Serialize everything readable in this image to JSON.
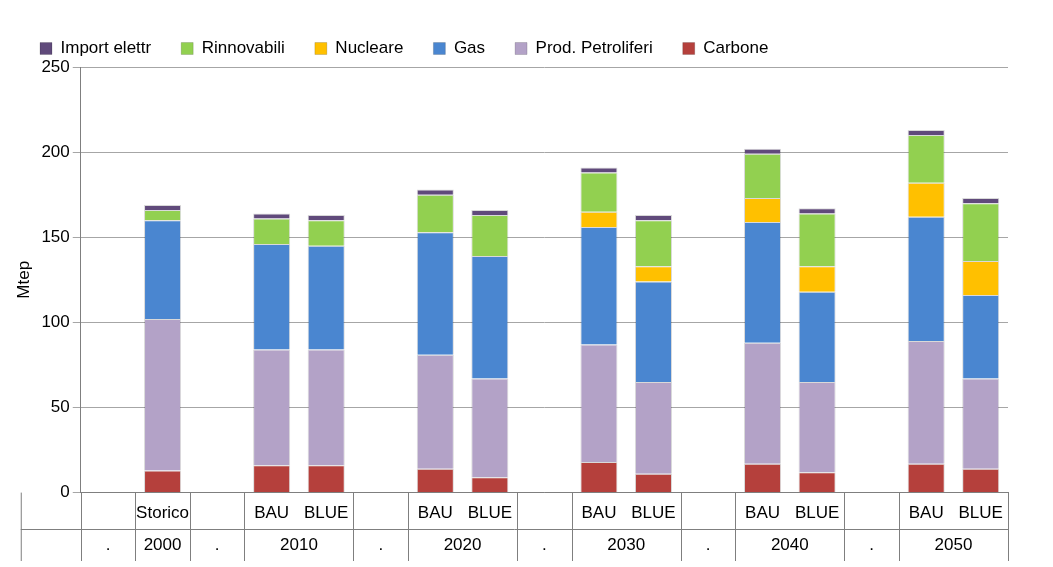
{
  "chart_data": {
    "type": "bar",
    "y_label": "Mtep",
    "groups": [
      {
        "label": ".",
        "categories": [
          null
        ]
      },
      {
        "label": "2000",
        "categories": [
          "Storico"
        ]
      },
      {
        "label": ".",
        "categories": [
          null
        ]
      },
      {
        "label": "2010",
        "categories": [
          "BAU",
          "BLUE"
        ]
      },
      {
        "label": ".",
        "categories": [
          null
        ]
      },
      {
        "label": "2020",
        "categories": [
          "BAU",
          "BLUE"
        ]
      },
      {
        "label": ".",
        "categories": [
          null
        ]
      },
      {
        "label": "2030",
        "categories": [
          "BAU",
          "BLUE"
        ]
      },
      {
        "label": ".",
        "categories": [
          null
        ]
      },
      {
        "label": "2040",
        "categories": [
          "BAU",
          "BLUE"
        ]
      },
      {
        "label": ".",
        "categories": [
          null
        ]
      },
      {
        "label": "2050",
        "categories": [
          "BAU",
          "BLUE"
        ]
      }
    ],
    "series": [
      {
        "name": "Carbone",
        "color": "#b5403c",
        "values": [
          null,
          13,
          null,
          16,
          16,
          null,
          14,
          9,
          null,
          18,
          11,
          null,
          17,
          12,
          null,
          17,
          14
        ]
      },
      {
        "name": "Prod. Petroliferi",
        "color": "#b3a2c7",
        "values": [
          null,
          89,
          null,
          68,
          68,
          null,
          67,
          58,
          null,
          69,
          54,
          null,
          71,
          53,
          null,
          72,
          53
        ]
      },
      {
        "name": "Gas",
        "color": "#4a86d0",
        "values": [
          null,
          58,
          null,
          62,
          61,
          null,
          72,
          72,
          null,
          69,
          59,
          null,
          71,
          53,
          null,
          73,
          49
        ]
      },
      {
        "name": "Nucleare",
        "color": "#ffc000",
        "values": [
          null,
          0,
          null,
          0,
          0,
          null,
          0,
          0,
          null,
          9,
          9,
          null,
          14,
          15,
          null,
          20,
          20
        ]
      },
      {
        "name": "Rinnovabili",
        "color": "#92d050",
        "values": [
          null,
          6,
          null,
          15,
          15,
          null,
          22,
          24,
          null,
          23,
          27,
          null,
          26,
          31,
          null,
          28,
          34
        ]
      },
      {
        "name": "Import elettr",
        "color": "#604a7b",
        "values": [
          null,
          3,
          null,
          3,
          3,
          null,
          3,
          3,
          null,
          3,
          3,
          null,
          3,
          3,
          null,
          3,
          3
        ]
      }
    ],
    "ylim": [
      0,
      250
    ],
    "yticks": [
      0,
      50,
      100,
      150,
      200,
      250
    ],
    "grid": true,
    "stacked": true,
    "legend": "top"
  }
}
